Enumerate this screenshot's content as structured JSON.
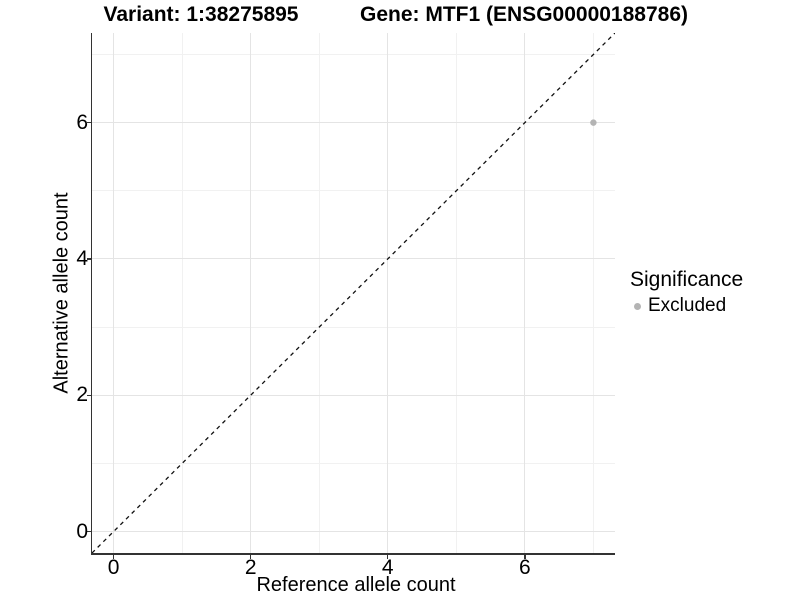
{
  "chart_data": {
    "type": "scatter",
    "titles": {
      "left": "Variant: 1:38275895",
      "right": "Gene: MTF1 (ENSG00000188786)"
    },
    "xlabel": "Reference allele count",
    "ylabel": "Alternative allele count",
    "x_ticks": [
      0,
      2,
      4,
      6
    ],
    "y_ticks": [
      0,
      2,
      4,
      6
    ],
    "x_minor_ticks": [
      1,
      3,
      5,
      7
    ],
    "y_minor_ticks": [
      1,
      3,
      5,
      7
    ],
    "xlim": [
      -0.315,
      7.315
    ],
    "ylim": [
      -0.315,
      7.315
    ],
    "grid": true,
    "identity_line": {
      "style": "dashed",
      "equation": "y = x",
      "from": [
        -0.315,
        -0.315
      ],
      "to": [
        7.315,
        7.315
      ],
      "color": "#111111"
    },
    "series": [
      {
        "name": "Excluded",
        "color": "#b4b4b4",
        "points": [
          {
            "x": 7,
            "y": 6
          }
        ]
      }
    ],
    "legend": {
      "title": "Significance",
      "position": "right",
      "entries": [
        {
          "label": "Excluded",
          "color": "#b4b4b4"
        }
      ]
    },
    "colors": {
      "grid_major": "#e4e4e4",
      "grid_minor": "#f1f1f1",
      "axis": "#333333",
      "text": "#000000",
      "background": "#ffffff"
    }
  }
}
